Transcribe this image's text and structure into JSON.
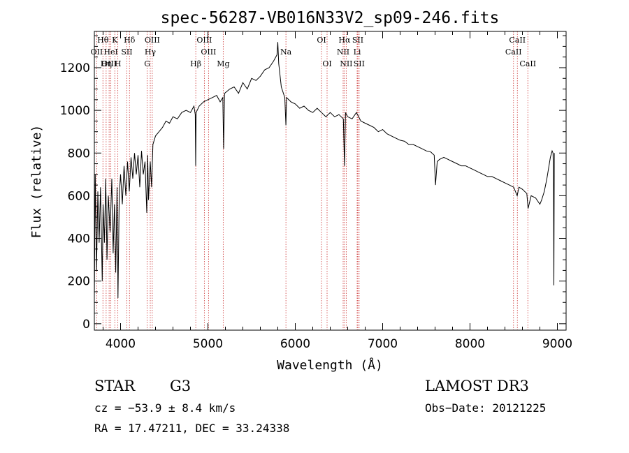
{
  "chart_data": {
    "type": "line",
    "title": "spec-56287-VB016N33V2_sp09-246.fits",
    "xlabel": "Wavelength (Å)",
    "ylabel": "Flux (relative)",
    "xlim": [
      3700,
      9100
    ],
    "ylim": [
      -30,
      1370
    ],
    "xticks": [
      4000,
      5000,
      6000,
      7000,
      8000,
      9000
    ],
    "xtick_labels": [
      "4000",
      "5000",
      "6000",
      "7000",
      "8000",
      "9000"
    ],
    "yticks": [
      0,
      200,
      400,
      600,
      800,
      1000,
      1200
    ],
    "ytick_labels": [
      "0",
      "200",
      "400",
      "600",
      "800",
      "1000",
      "1200"
    ],
    "series": [
      {
        "name": "flux",
        "points": [
          [
            3700,
            120
          ],
          [
            3710,
            700
          ],
          [
            3725,
            250
          ],
          [
            3740,
            620
          ],
          [
            3755,
            380
          ],
          [
            3770,
            640
          ],
          [
            3790,
            200
          ],
          [
            3800,
            560
          ],
          [
            3815,
            380
          ],
          [
            3830,
            680
          ],
          [
            3845,
            300
          ],
          [
            3860,
            600
          ],
          [
            3880,
            430
          ],
          [
            3900,
            680
          ],
          [
            3915,
            330
          ],
          [
            3930,
            560
          ],
          [
            3945,
            240
          ],
          [
            3960,
            640
          ],
          [
            3970,
            120
          ],
          [
            3985,
            600
          ],
          [
            4000,
            700
          ],
          [
            4020,
            560
          ],
          [
            4040,
            740
          ],
          [
            4060,
            600
          ],
          [
            4080,
            760
          ],
          [
            4100,
            620
          ],
          [
            4120,
            780
          ],
          [
            4140,
            680
          ],
          [
            4160,
            800
          ],
          [
            4180,
            700
          ],
          [
            4200,
            790
          ],
          [
            4220,
            640
          ],
          [
            4240,
            810
          ],
          [
            4260,
            700
          ],
          [
            4280,
            760
          ],
          [
            4300,
            520
          ],
          [
            4310,
            790
          ],
          [
            4320,
            580
          ],
          [
            4340,
            760
          ],
          [
            4355,
            640
          ],
          [
            4370,
            840
          ],
          [
            4400,
            880
          ],
          [
            4440,
            900
          ],
          [
            4480,
            920
          ],
          [
            4520,
            950
          ],
          [
            4560,
            940
          ],
          [
            4600,
            970
          ],
          [
            4650,
            960
          ],
          [
            4700,
            990
          ],
          [
            4750,
            1000
          ],
          [
            4800,
            990
          ],
          [
            4840,
            1020
          ],
          [
            4855,
            980
          ],
          [
            4860,
            740
          ],
          [
            4865,
            990
          ],
          [
            4900,
            1020
          ],
          [
            4950,
            1040
          ],
          [
            5000,
            1050
          ],
          [
            5050,
            1060
          ],
          [
            5100,
            1070
          ],
          [
            5140,
            1040
          ],
          [
            5170,
            1060
          ],
          [
            5180,
            820
          ],
          [
            5190,
            1080
          ],
          [
            5250,
            1100
          ],
          [
            5300,
            1110
          ],
          [
            5350,
            1080
          ],
          [
            5400,
            1130
          ],
          [
            5450,
            1100
          ],
          [
            5500,
            1150
          ],
          [
            5550,
            1140
          ],
          [
            5600,
            1160
          ],
          [
            5650,
            1190
          ],
          [
            5700,
            1200
          ],
          [
            5750,
            1230
          ],
          [
            5790,
            1260
          ],
          [
            5800,
            1320
          ],
          [
            5810,
            1220
          ],
          [
            5840,
            1110
          ],
          [
            5880,
            1060
          ],
          [
            5893,
            930
          ],
          [
            5900,
            1060
          ],
          [
            5950,
            1040
          ],
          [
            6000,
            1030
          ],
          [
            6050,
            1010
          ],
          [
            6100,
            1020
          ],
          [
            6150,
            1000
          ],
          [
            6200,
            990
          ],
          [
            6250,
            1010
          ],
          [
            6300,
            990
          ],
          [
            6350,
            970
          ],
          [
            6400,
            990
          ],
          [
            6450,
            970
          ],
          [
            6500,
            980
          ],
          [
            6550,
            960
          ],
          [
            6563,
            740
          ],
          [
            6575,
            990
          ],
          [
            6600,
            970
          ],
          [
            6650,
            960
          ],
          [
            6700,
            990
          ],
          [
            6750,
            950
          ],
          [
            6800,
            940
          ],
          [
            6850,
            930
          ],
          [
            6900,
            920
          ],
          [
            6950,
            900
          ],
          [
            7000,
            910
          ],
          [
            7050,
            890
          ],
          [
            7100,
            880
          ],
          [
            7150,
            870
          ],
          [
            7200,
            860
          ],
          [
            7250,
            855
          ],
          [
            7300,
            840
          ],
          [
            7350,
            840
          ],
          [
            7400,
            830
          ],
          [
            7450,
            820
          ],
          [
            7500,
            810
          ],
          [
            7550,
            805
          ],
          [
            7590,
            790
          ],
          [
            7605,
            650
          ],
          [
            7625,
            760
          ],
          [
            7650,
            770
          ],
          [
            7700,
            780
          ],
          [
            7750,
            770
          ],
          [
            7800,
            760
          ],
          [
            7850,
            750
          ],
          [
            7900,
            740
          ],
          [
            7950,
            740
          ],
          [
            8000,
            730
          ],
          [
            8050,
            720
          ],
          [
            8100,
            710
          ],
          [
            8150,
            700
          ],
          [
            8200,
            690
          ],
          [
            8250,
            690
          ],
          [
            8300,
            680
          ],
          [
            8350,
            670
          ],
          [
            8400,
            660
          ],
          [
            8450,
            650
          ],
          [
            8500,
            640
          ],
          [
            8540,
            600
          ],
          [
            8560,
            640
          ],
          [
            8600,
            630
          ],
          [
            8650,
            610
          ],
          [
            8665,
            540
          ],
          [
            8700,
            600
          ],
          [
            8750,
            590
          ],
          [
            8800,
            560
          ],
          [
            8820,
            580
          ],
          [
            8850,
            620
          ],
          [
            8880,
            680
          ],
          [
            8900,
            730
          ],
          [
            8920,
            780
          ],
          [
            8940,
            810
          ],
          [
            8950,
            800
          ],
          [
            8955,
            700
          ],
          [
            8960,
            180
          ],
          [
            8965,
            800
          ]
        ]
      }
    ],
    "lines": [
      {
        "label": "Hθ",
        "x": 3798,
        "row": 0
      },
      {
        "label": "OII",
        "x": 3727,
        "row": 1
      },
      {
        "label": "OIII",
        "x": 3869,
        "row": 2
      },
      {
        "label": "Hη",
        "x": 3835,
        "row": 2
      },
      {
        "label": "K",
        "x": 3934,
        "row": 0
      },
      {
        "label": "HeI",
        "x": 3889,
        "row": 1
      },
      {
        "label": "H",
        "x": 3969,
        "row": 2
      },
      {
        "label": "Hδ",
        "x": 4102,
        "row": 0
      },
      {
        "label": "SII",
        "x": 4072,
        "row": 1
      },
      {
        "label": "OIII",
        "x": 4363,
        "row": 0
      },
      {
        "label": "Hγ",
        "x": 4340,
        "row": 1
      },
      {
        "label": "G",
        "x": 4305,
        "row": 2
      },
      {
        "label": "OIII",
        "x": 4959,
        "row": 0
      },
      {
        "label": "OIII",
        "x": 5007,
        "row": 1
      },
      {
        "label": "Hβ",
        "x": 4861,
        "row": 2
      },
      {
        "label": "Mg",
        "x": 5175,
        "row": 2
      },
      {
        "label": "Na",
        "x": 5893,
        "row": 1
      },
      {
        "label": "OI",
        "x": 6300,
        "row": 0
      },
      {
        "label": "OI",
        "x": 6364,
        "row": 2
      },
      {
        "label": "Hα",
        "x": 6563,
        "row": 0
      },
      {
        "label": "SII",
        "x": 6716,
        "row": 0
      },
      {
        "label": "NII",
        "x": 6548,
        "row": 1
      },
      {
        "label": "Li",
        "x": 6708,
        "row": 1
      },
      {
        "label": "NII",
        "x": 6583,
        "row": 2
      },
      {
        "label": "SII",
        "x": 6731,
        "row": 2
      },
      {
        "label": "CaII",
        "x": 8542,
        "row": 0
      },
      {
        "label": "CaII",
        "x": 8498,
        "row": 1
      },
      {
        "label": "CaII",
        "x": 8662,
        "row": 2
      }
    ]
  },
  "info": {
    "object_class": "STAR",
    "subclass": "G3",
    "survey": "LAMOST DR3",
    "cz": "cz = −53.9 ± 8.4 km/s",
    "obs_date": "Obs−Date: 20121225",
    "coords": "RA =  17.47211, DEC =  33.24338"
  },
  "colors": {
    "line": "#000000",
    "marker": "#cc3333"
  }
}
